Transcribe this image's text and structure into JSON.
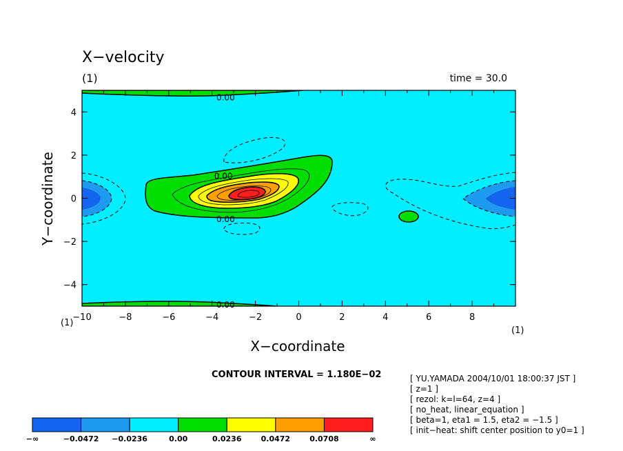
{
  "chart_data": {
    "type": "contour",
    "title": "X−velocity",
    "subtitle_left": "(1)",
    "subtitle_right": "time = 30.0",
    "xlabel": "X−coordinate",
    "ylabel": "Y−coordinate",
    "xlim": [
      -10,
      10
    ],
    "ylim": [
      -5,
      5
    ],
    "xticks": [
      {
        "value": -10,
        "label": "−10"
      },
      {
        "value": -8,
        "label": "−8"
      },
      {
        "value": -6,
        "label": "−6"
      },
      {
        "value": -4,
        "label": "−4"
      },
      {
        "value": -2,
        "label": "−2"
      },
      {
        "value": 0,
        "label": "0"
      },
      {
        "value": 2,
        "label": "2"
      },
      {
        "value": 4,
        "label": "4"
      },
      {
        "value": 6,
        "label": "6"
      },
      {
        "value": 8,
        "label": "8"
      }
    ],
    "yticks": [
      {
        "value": 4,
        "label": "4"
      },
      {
        "value": 2,
        "label": "2"
      },
      {
        "value": 0,
        "label": "0"
      },
      {
        "value": -2,
        "label": "−2"
      },
      {
        "value": -4,
        "label": "−4"
      }
    ],
    "corner_labels": {
      "bottom_left": "(1)",
      "right": "(1)"
    },
    "contour_interval": "CONTOUR INTERVAL = 1.180E−02",
    "contour_labels": [
      {
        "text": "0.00",
        "x": -3.8,
        "y": 4.7
      },
      {
        "text": "0.00",
        "x": -3.9,
        "y": 1.05
      },
      {
        "text": "0.00",
        "x": -3.8,
        "y": -0.95
      },
      {
        "text": "0.00",
        "x": -3.8,
        "y": -4.9
      }
    ],
    "colorbar": {
      "boundaries": [
        "−∞",
        "−0.0472",
        "−0.0236",
        "0.00",
        "0.0236",
        "0.0472",
        "0.0708",
        "∞"
      ],
      "colors": [
        "#1464f0",
        "#1e9bf0",
        "#00eeff",
        "#00dd00",
        "#ffff00",
        "#ffa000",
        "#ff1e1e"
      ]
    },
    "colors": {
      "background": "#00eeff",
      "negative1": "#1e9bf0",
      "negative2": "#1464f0",
      "positive1": "#00dd00",
      "positive2": "#ffff00",
      "positive3": "#ffa000",
      "positive4": "#ff1e1e"
    }
  },
  "info_lines": [
    "[ YU.YAMADA 2004/10/01 18:00:37 JST ]",
    "[ z=1 ]",
    "[ rezol: k=l=64, z=4 ]",
    "[ no_heat, linear_equation ]",
    "[ beta=1, eta1 = 1.5, eta2 = −1.5 ]",
    "[ init−heat: shift center position to y0=1 ]"
  ]
}
